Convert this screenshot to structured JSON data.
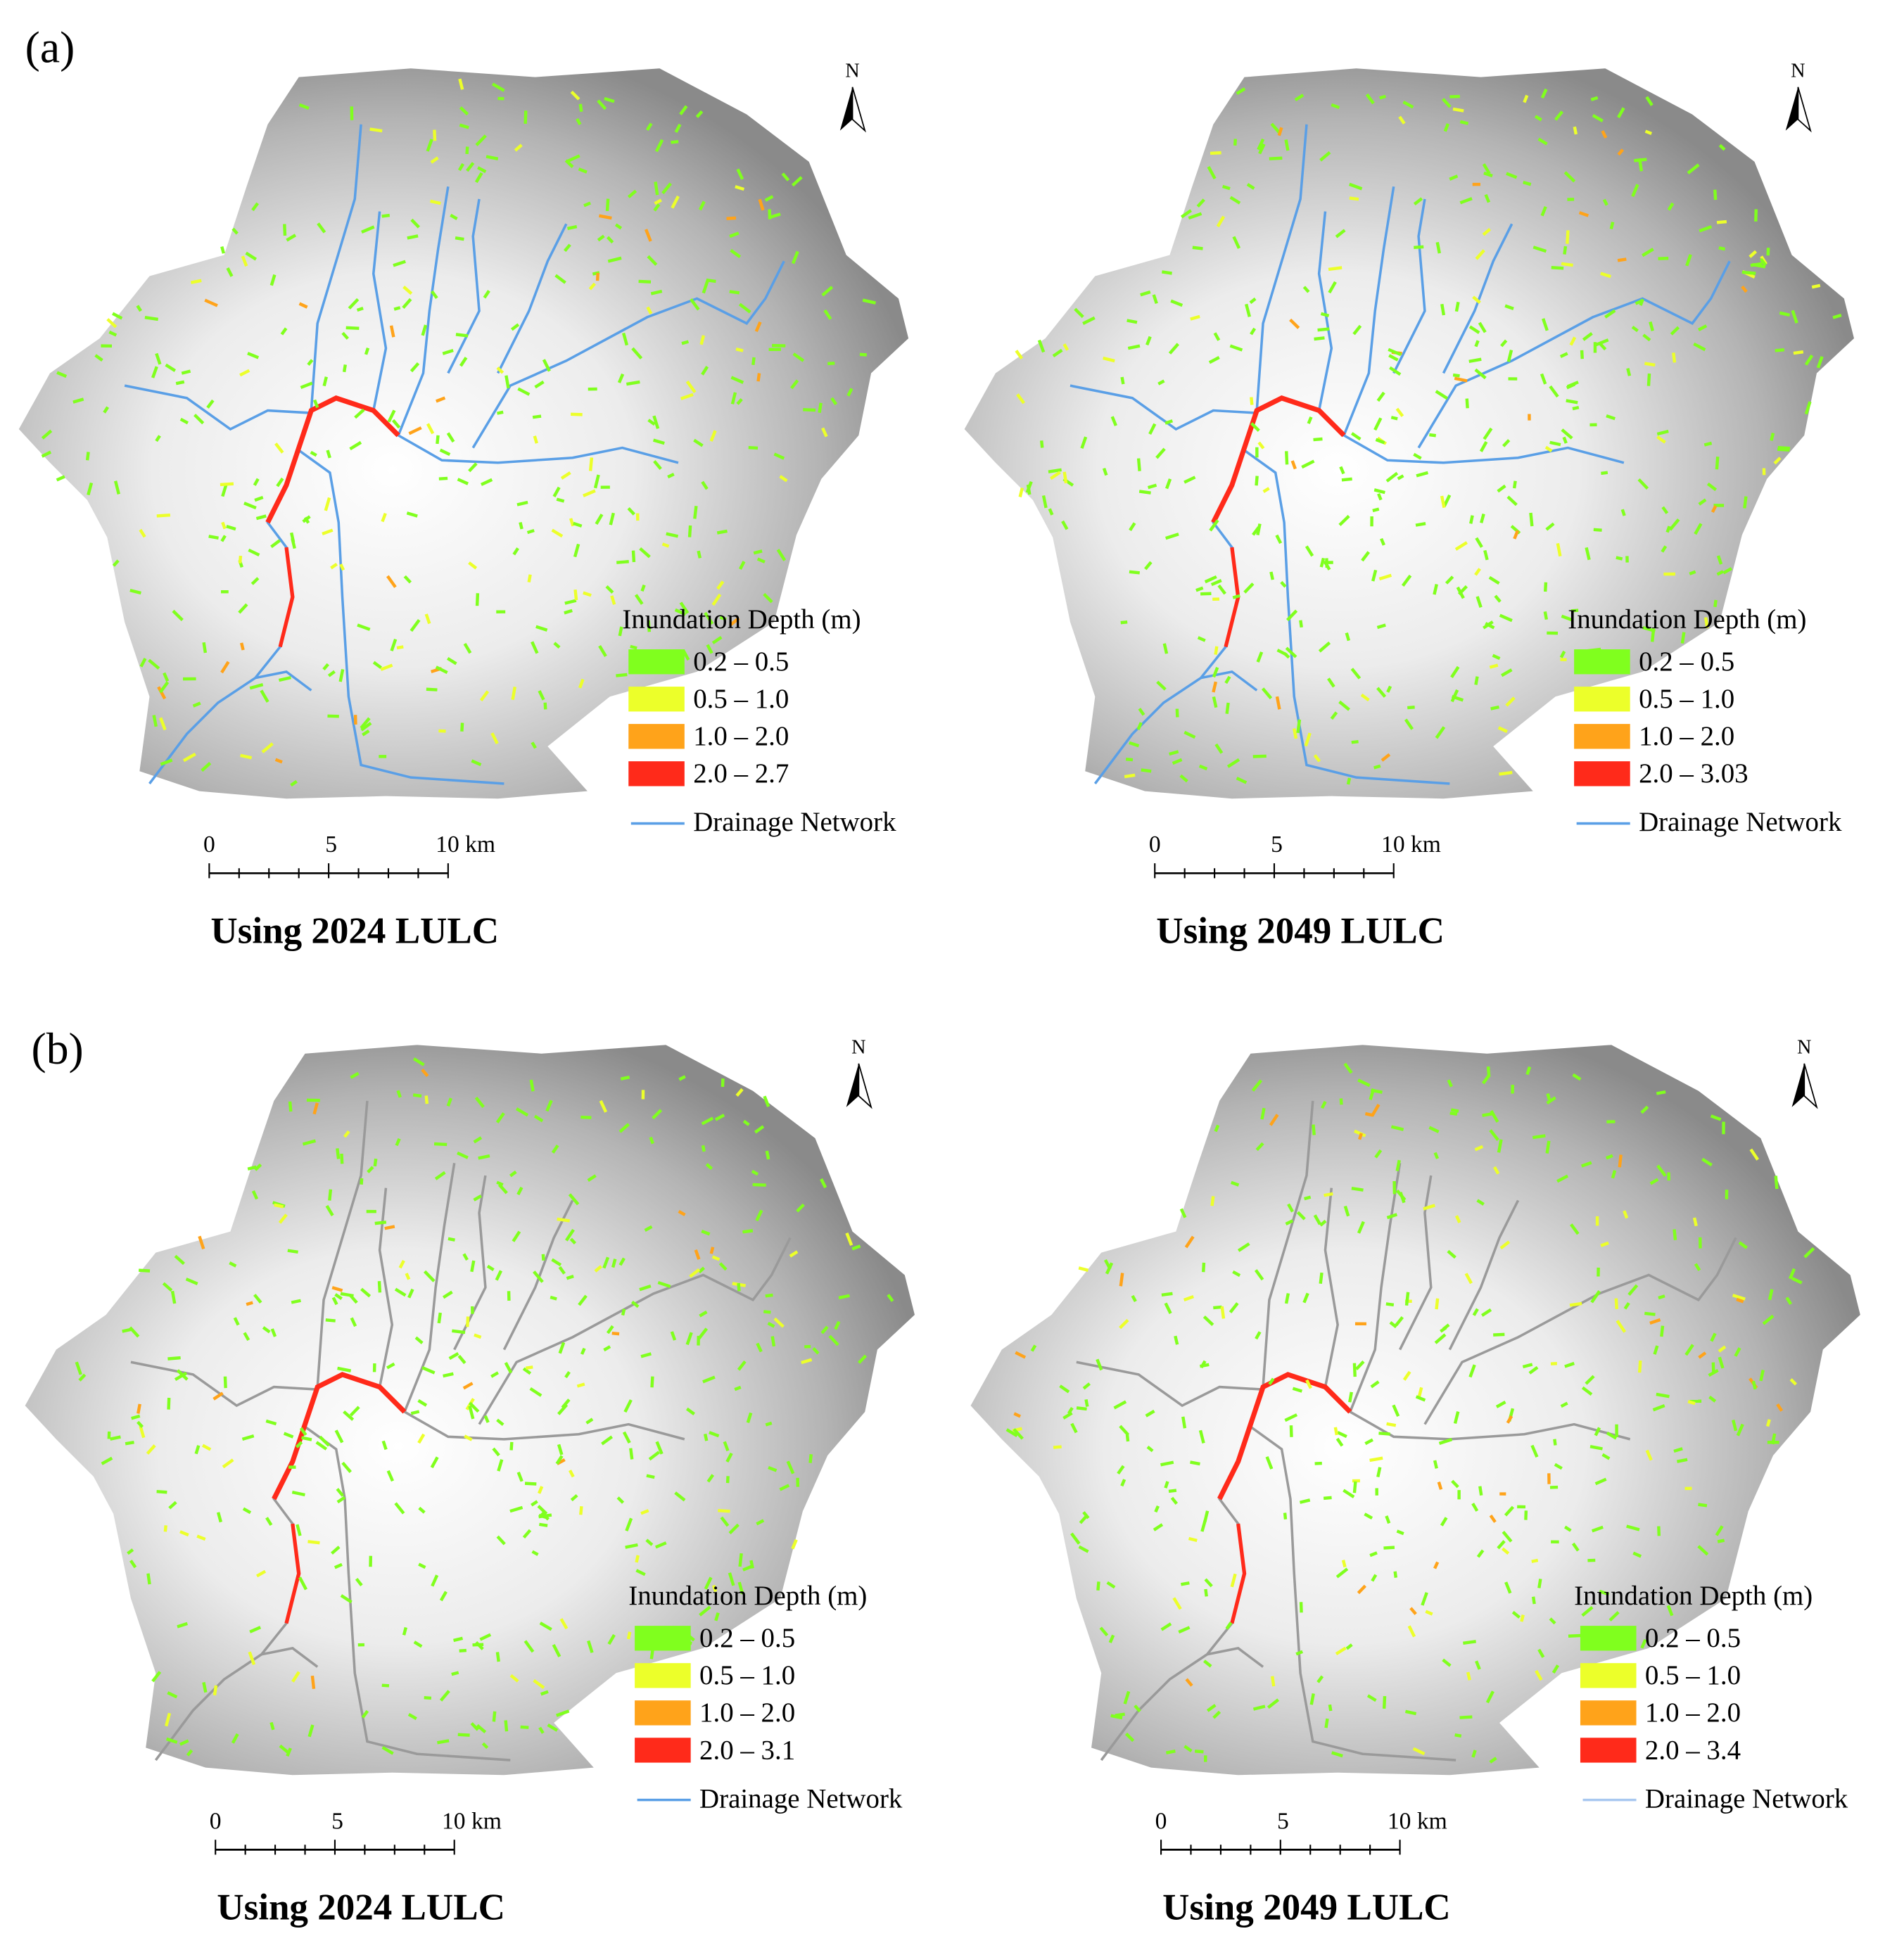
{
  "figure_labels": [
    "(a)",
    "(b)"
  ],
  "panels": [
    {
      "title": "Using 2024 LULC",
      "north": "N",
      "river_color": "#5a9fe6",
      "scale_bar": [
        "0",
        "5",
        "10 km"
      ],
      "legend": {
        "title": "Inundation Depth (m)",
        "network": "Drainage Network",
        "network_color": "#5a9fe6",
        "classes": [
          {
            "label": "0.2 – 0.5",
            "color": "#80ff1e"
          },
          {
            "label": "0.5 – 1.0",
            "color": "#ecff2a"
          },
          {
            "label": "1.0 – 2.0",
            "color": "#ffa31a"
          },
          {
            "label": "2.0 – 2.7",
            "color": "#ff2a1a"
          }
        ]
      }
    },
    {
      "title": "Using 2049 LULC",
      "north": "N",
      "river_color": "#5a9fe6",
      "scale_bar": [
        "0",
        "5",
        "10 km"
      ],
      "legend": {
        "title": "Inundation Depth (m)",
        "network": "Drainage Network",
        "network_color": "#5a9fe6",
        "classes": [
          {
            "label": "0.2 – 0.5",
            "color": "#80ff1e"
          },
          {
            "label": "0.5 – 1.0",
            "color": "#ecff2a"
          },
          {
            "label": "1.0 – 2.0",
            "color": "#ffa31a"
          },
          {
            "label": "2.0 – 3.03",
            "color": "#ff2a1a"
          }
        ]
      }
    },
    {
      "title": "Using 2024 LULC",
      "north": "N",
      "river_color": "#9a9a9a",
      "scale_bar": [
        "0",
        "5",
        "10 km"
      ],
      "legend": {
        "title": "Inundation Depth (m)",
        "network": "Drainage Network",
        "network_color": "#5a9fe6",
        "classes": [
          {
            "label": "0.2 – 0.5",
            "color": "#80ff1e"
          },
          {
            "label": "0.5 – 1.0",
            "color": "#ecff2a"
          },
          {
            "label": "1.0 – 2.0",
            "color": "#ffa31a"
          },
          {
            "label": "2.0 – 3.1",
            "color": "#ff2a1a"
          }
        ]
      }
    },
    {
      "title": "Using 2049 LULC",
      "north": "N",
      "river_color": "#9a9a9a",
      "scale_bar": [
        "0",
        "5",
        "10 km"
      ],
      "legend": {
        "title": "Inundation Depth (m)",
        "network": "Drainage Network",
        "network_color": "#a8c8f0",
        "classes": [
          {
            "label": "0.2 – 0.5",
            "color": "#80ff1e"
          },
          {
            "label": "0.5 – 1.0",
            "color": "#ecff2a"
          },
          {
            "label": "1.0 – 2.0",
            "color": "#ffa31a"
          },
          {
            "label": "2.0 – 3.4",
            "color": "#ff2a1a"
          }
        ]
      }
    }
  ]
}
